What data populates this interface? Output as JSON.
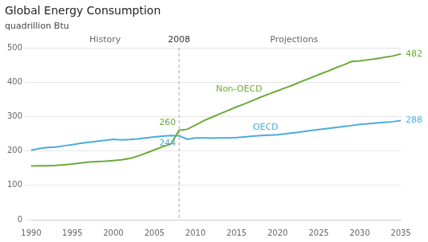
{
  "chart_data": {
    "type": "line",
    "title": "Global Energy Consumption",
    "ylabel": "quadrillion Btu",
    "x": [
      1990,
      1991,
      1992,
      1993,
      1994,
      1995,
      1996,
      1997,
      1998,
      1999,
      2000,
      2001,
      2002,
      2003,
      2004,
      2005,
      2006,
      2007,
      2008,
      2009,
      2010,
      2011,
      2012,
      2013,
      2014,
      2015,
      2016,
      2017,
      2018,
      2019,
      2020,
      2021,
      2022,
      2023,
      2024,
      2025,
      2026,
      2027,
      2028,
      2029,
      2030,
      2031,
      2032,
      2033,
      2034,
      2035
    ],
    "series": [
      {
        "name": "Non-OECD",
        "color": "#6aaa3a",
        "values": [
          156,
          157,
          157,
          158,
          160,
          162,
          165,
          168,
          169,
          170,
          172,
          174,
          178,
          185,
          194,
          203,
          212,
          220,
          260,
          263,
          275,
          288,
          298,
          308,
          318,
          328,
          337,
          347,
          357,
          366,
          375,
          384,
          393,
          403,
          412,
          422,
          431,
          441,
          450,
          460,
          462,
          465,
          468,
          472,
          476,
          482
        ]
      },
      {
        "name": "OECD",
        "color": "#4aabdb",
        "values": [
          202,
          207,
          210,
          211,
          215,
          218,
          222,
          225,
          228,
          231,
          234,
          232,
          233,
          235,
          238,
          241,
          243,
          245,
          244,
          234,
          238,
          238,
          237,
          238,
          238,
          239,
          241,
          243,
          245,
          246,
          247,
          250,
          253,
          256,
          259,
          262,
          265,
          268,
          271,
          274,
          277,
          279,
          281,
          283,
          285,
          288
        ]
      }
    ],
    "xlim": [
      1990,
      2035
    ],
    "xticks": [
      1990,
      1995,
      2000,
      2005,
      2010,
      2015,
      2020,
      2025,
      2030,
      2035
    ],
    "ylim": [
      0,
      500
    ],
    "yticks": [
      0,
      100,
      200,
      300,
      400,
      500
    ],
    "grid": "y",
    "annotations": [
      {
        "text": "2008",
        "x": 2008,
        "line_style": "dashed"
      },
      {
        "text": "History",
        "x": 1999
      },
      {
        "text": "Projections",
        "x": 2022
      },
      {
        "text": "482",
        "x": 2035,
        "y": 482,
        "color": "#6aaa3a"
      },
      {
        "text": "288",
        "x": 2035,
        "y": 288,
        "color": "#4aabdb"
      },
      {
        "text": "260",
        "x": 2008,
        "y": 260,
        "color": "#6aaa3a"
      },
      {
        "text": "244",
        "x": 2008,
        "y": 244,
        "color": "#4aabdb"
      }
    ]
  }
}
